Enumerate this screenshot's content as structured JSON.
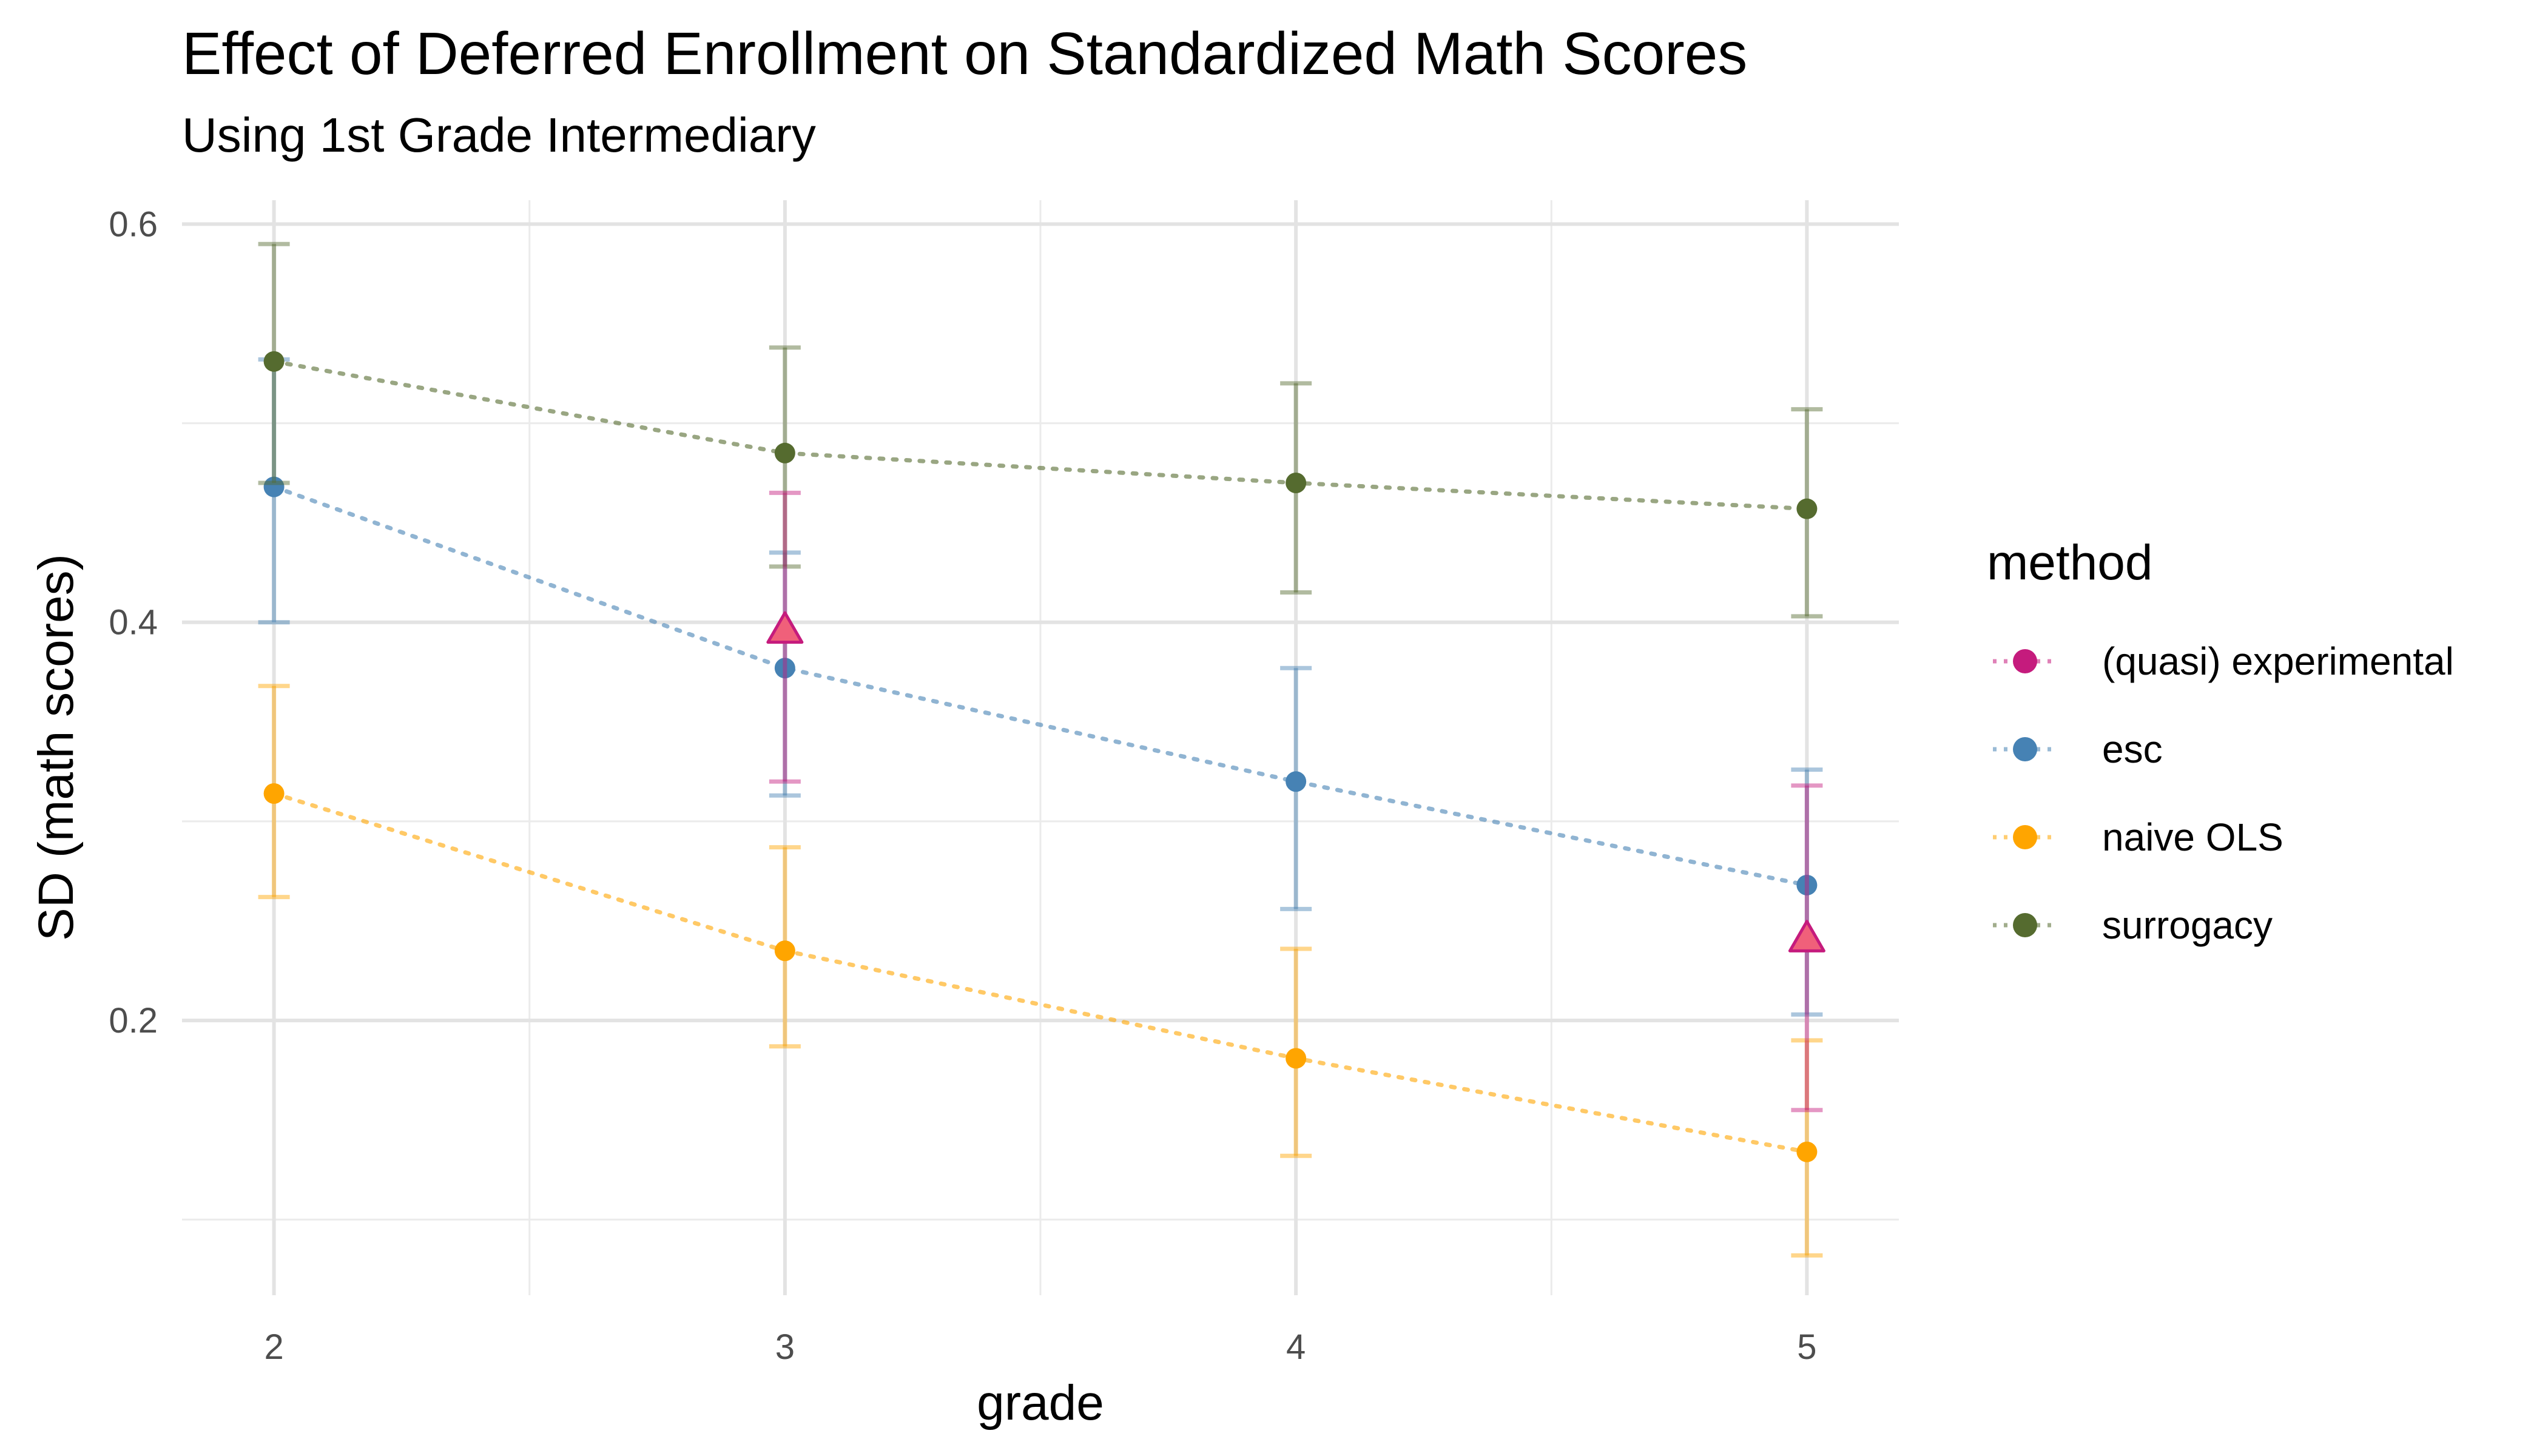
{
  "chart_data": {
    "type": "line",
    "title": "Effect of Deferred Enrollment on Standardized Math Scores",
    "subtitle": "Using 1st Grade Intermediary",
    "xlabel": "grade",
    "ylabel": "SD (math scores)",
    "xlim": [
      1.82,
      5.18
    ],
    "ylim": [
      0.062,
      0.612
    ],
    "x_ticks": [
      2,
      3,
      4,
      5
    ],
    "y_ticks": [
      0.2,
      0.4,
      0.6
    ],
    "x_tick_labels": [
      "2",
      "3",
      "4",
      "5"
    ],
    "y_tick_labels": [
      "0.2",
      "0.4",
      "0.6"
    ],
    "grid": true,
    "legend": {
      "title": "method",
      "position": "right"
    },
    "series": [
      {
        "name": "(quasi) experimental",
        "color": "#C51B7D",
        "fill": "#F0607A",
        "marker": "triangle",
        "line": false,
        "points": [
          {
            "x": 3,
            "y": 0.395,
            "lo": 0.32,
            "hi": 0.465
          },
          {
            "x": 5,
            "y": 0.24,
            "lo": 0.155,
            "hi": 0.318
          }
        ]
      },
      {
        "name": "esc",
        "color": "#4682B4",
        "marker": "circle",
        "line": true,
        "points": [
          {
            "x": 2,
            "y": 0.468,
            "lo": 0.4,
            "hi": 0.532
          },
          {
            "x": 3,
            "y": 0.377,
            "lo": 0.313,
            "hi": 0.435
          },
          {
            "x": 4,
            "y": 0.32,
            "lo": 0.256,
            "hi": 0.377
          },
          {
            "x": 5,
            "y": 0.268,
            "lo": 0.203,
            "hi": 0.326
          }
        ]
      },
      {
        "name": "naive OLS",
        "color": "#FFA500",
        "marker": "circle",
        "line": true,
        "points": [
          {
            "x": 2,
            "y": 0.314,
            "lo": 0.262,
            "hi": 0.368
          },
          {
            "x": 3,
            "y": 0.235,
            "lo": 0.187,
            "hi": 0.287
          },
          {
            "x": 4,
            "y": 0.181,
            "lo": 0.132,
            "hi": 0.236
          },
          {
            "x": 5,
            "y": 0.134,
            "lo": 0.082,
            "hi": 0.19
          }
        ]
      },
      {
        "name": "surrogacy",
        "color": "#556B2F",
        "marker": "circle",
        "line": true,
        "points": [
          {
            "x": 2,
            "y": 0.531,
            "lo": 0.47,
            "hi": 0.59
          },
          {
            "x": 3,
            "y": 0.485,
            "lo": 0.428,
            "hi": 0.538
          },
          {
            "x": 4,
            "y": 0.47,
            "lo": 0.415,
            "hi": 0.52
          },
          {
            "x": 5,
            "y": 0.457,
            "lo": 0.403,
            "hi": 0.507
          }
        ]
      }
    ]
  }
}
